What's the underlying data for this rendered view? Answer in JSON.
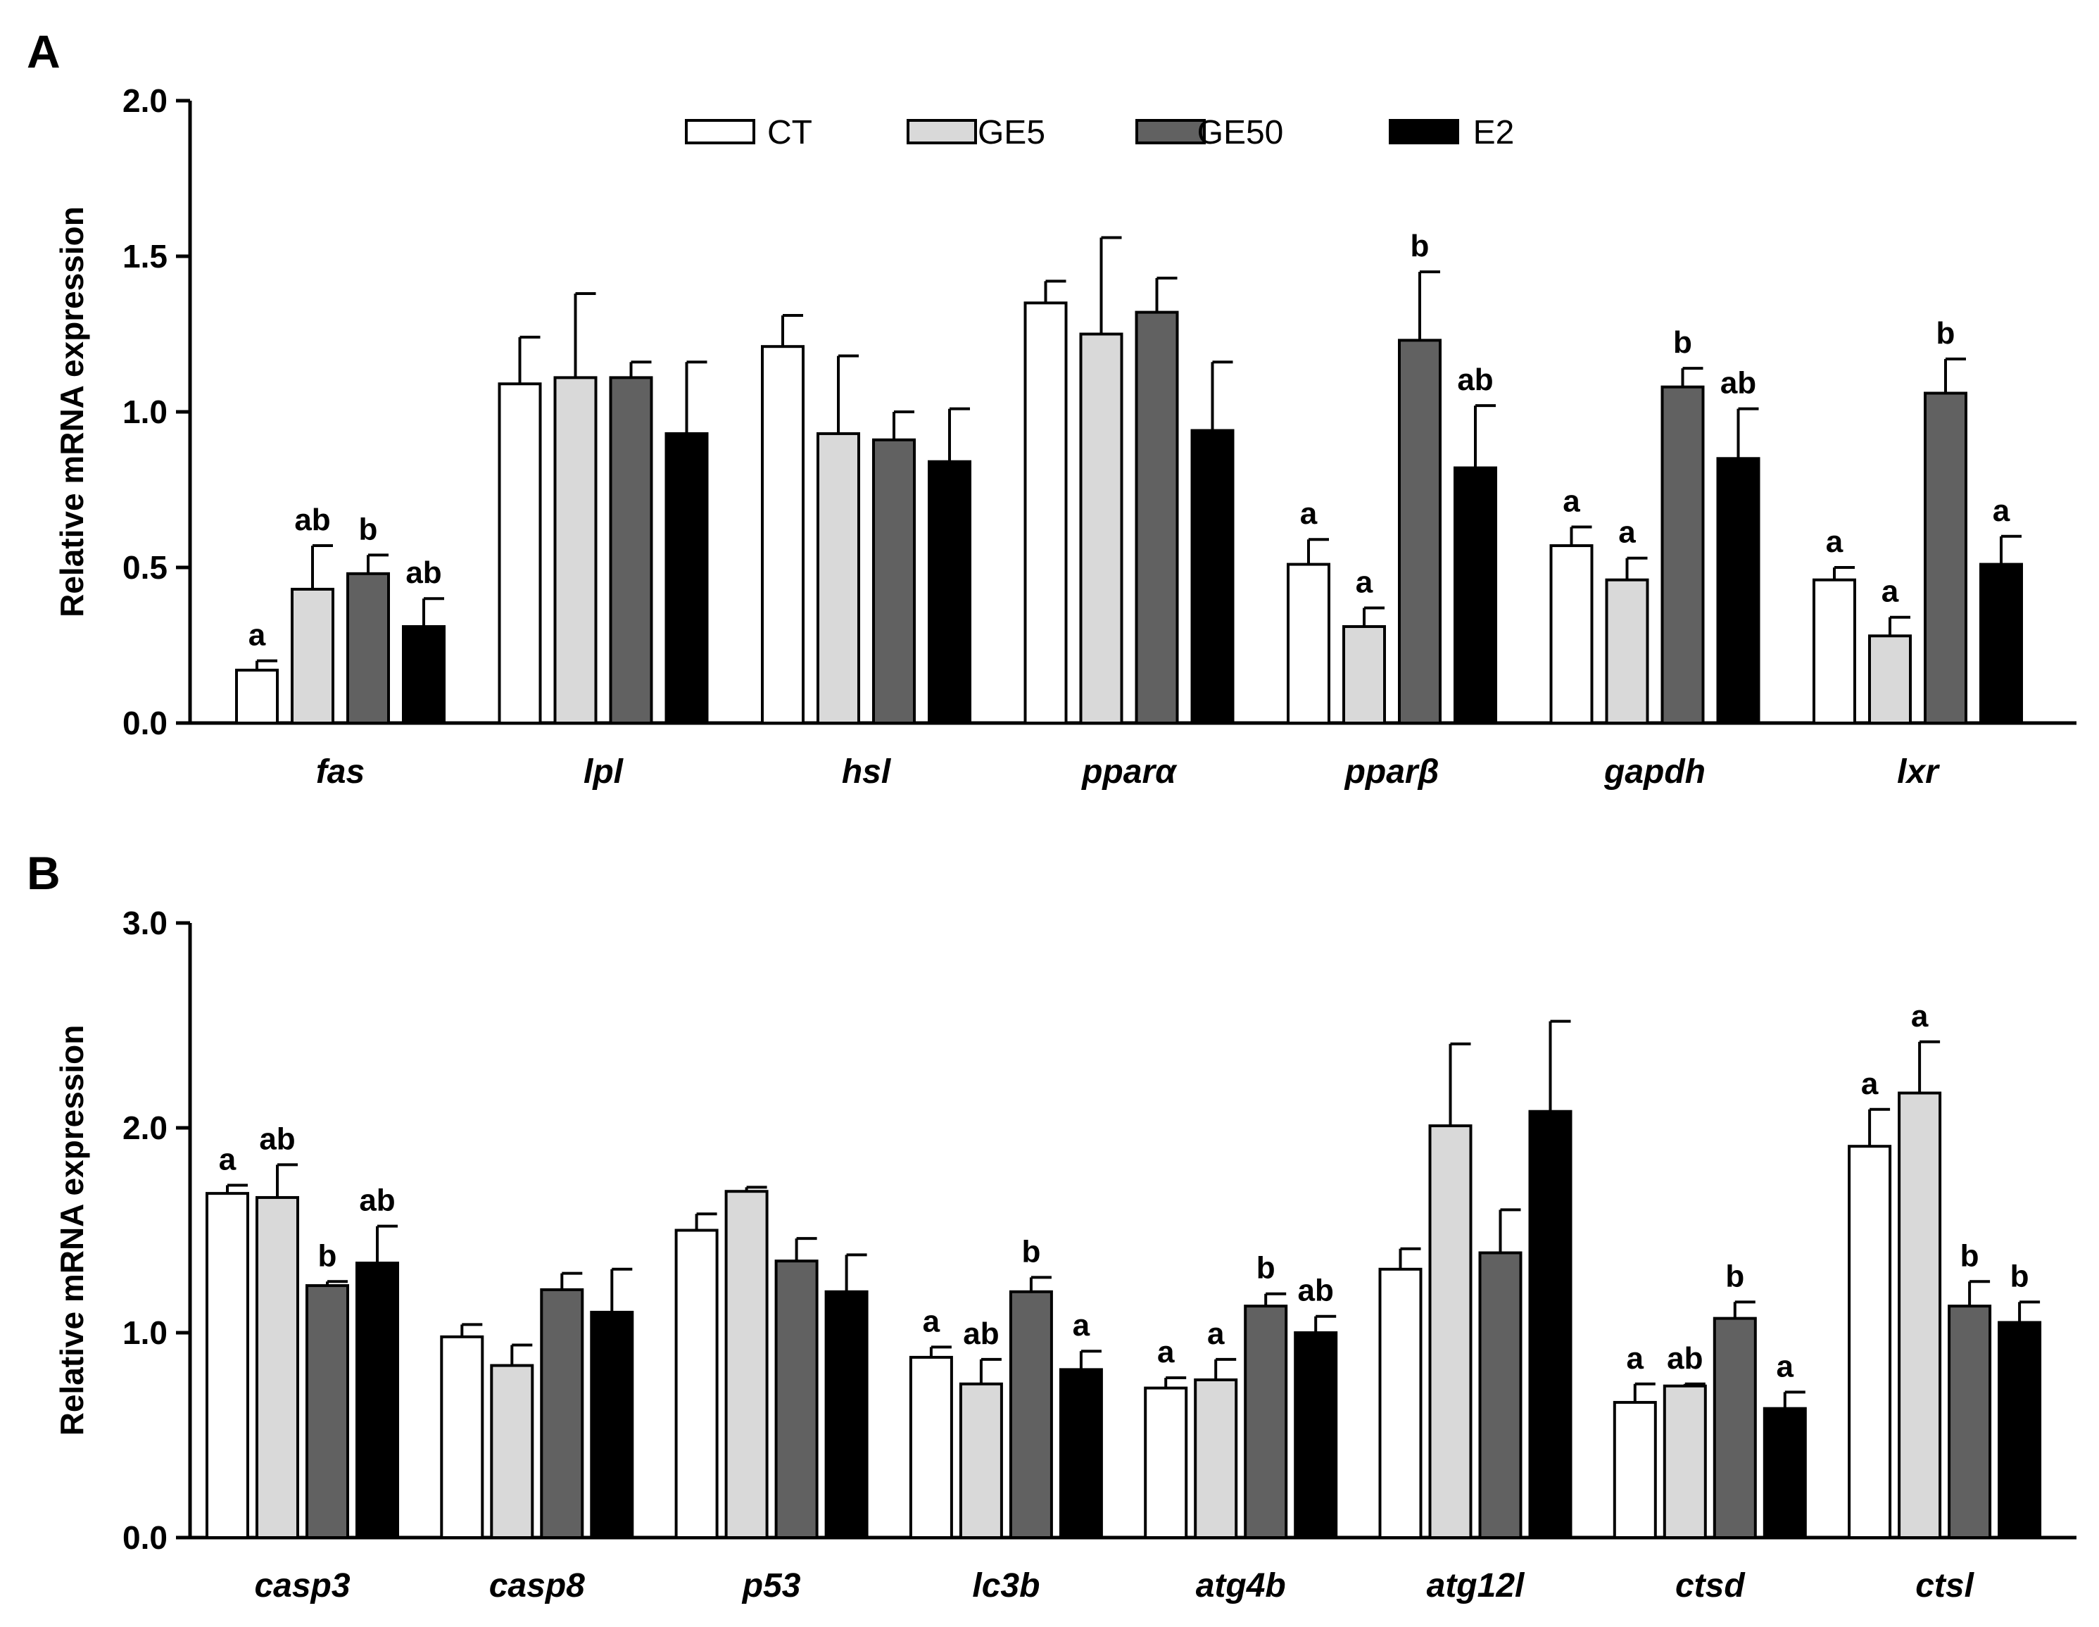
{
  "legend": [
    {
      "name": "CT",
      "color": "#ffffff"
    },
    {
      "name": "GE5",
      "color": "#d9d9d9"
    },
    {
      "name": "GE50",
      "color": "#616161"
    },
    {
      "name": "E2",
      "color": "#000000"
    }
  ],
  "chart_data": [
    {
      "panel": "A",
      "type": "bar",
      "ylabel": "Relative mRNA expression",
      "ylim": [
        0,
        2.0
      ],
      "yticks": [
        "0.0",
        "0.5",
        "1.0",
        "1.5",
        "2.0"
      ],
      "categories": [
        "fas",
        "lpl",
        "hsl",
        "pparα",
        "pparβ",
        "gapdh",
        "lxr"
      ],
      "series": [
        {
          "name": "CT",
          "values": [
            0.17,
            1.09,
            1.21,
            1.35,
            0.51,
            0.57,
            0.46
          ],
          "errors": [
            0.03,
            0.15,
            0.1,
            0.07,
            0.08,
            0.06,
            0.04
          ]
        },
        {
          "name": "GE5",
          "values": [
            0.43,
            1.11,
            0.93,
            1.25,
            0.31,
            0.46,
            0.28
          ],
          "errors": [
            0.14,
            0.27,
            0.25,
            0.31,
            0.06,
            0.07,
            0.06
          ]
        },
        {
          "name": "GE50",
          "values": [
            0.48,
            1.11,
            0.91,
            1.32,
            1.23,
            1.08,
            1.06
          ],
          "errors": [
            0.06,
            0.05,
            0.09,
            0.11,
            0.22,
            0.06,
            0.11
          ]
        },
        {
          "name": "E2",
          "values": [
            0.31,
            0.93,
            0.84,
            0.94,
            0.82,
            0.85,
            0.51
          ],
          "errors": [
            0.09,
            0.23,
            0.17,
            0.22,
            0.2,
            0.16,
            0.09
          ]
        }
      ],
      "significance": [
        [
          "a",
          "ab",
          "b",
          "ab"
        ],
        [
          "",
          "",
          "",
          ""
        ],
        [
          "",
          "",
          "",
          ""
        ],
        [
          "",
          "",
          "",
          ""
        ],
        [
          "a",
          "a",
          "b",
          "ab"
        ],
        [
          "a",
          "a",
          "b",
          "ab"
        ],
        [
          "a",
          "a",
          "b",
          "a"
        ]
      ]
    },
    {
      "panel": "B",
      "type": "bar",
      "ylabel": "Relative mRNA expression",
      "ylim": [
        0,
        3.0
      ],
      "yticks": [
        "0.0",
        "1.0",
        "2.0",
        "3.0"
      ],
      "categories": [
        "casp3",
        "casp8",
        "p53",
        "lc3b",
        "atg4b",
        "atg12l",
        "ctsd",
        "ctsl"
      ],
      "series": [
        {
          "name": "CT",
          "values": [
            1.68,
            0.98,
            1.5,
            0.88,
            0.73,
            1.31,
            0.66,
            1.91
          ],
          "errors": [
            0.04,
            0.06,
            0.08,
            0.05,
            0.05,
            0.1,
            0.09,
            0.18
          ]
        },
        {
          "name": "GE5",
          "values": [
            1.66,
            0.84,
            1.69,
            0.75,
            0.77,
            2.01,
            0.74,
            2.17
          ],
          "errors": [
            0.16,
            0.1,
            0.02,
            0.12,
            0.1,
            0.4,
            0.01,
            0.25
          ]
        },
        {
          "name": "GE50",
          "values": [
            1.23,
            1.21,
            1.35,
            1.2,
            1.13,
            1.39,
            1.07,
            1.13
          ],
          "errors": [
            0.02,
            0.08,
            0.11,
            0.07,
            0.06,
            0.21,
            0.08,
            0.12
          ]
        },
        {
          "name": "E2",
          "values": [
            1.34,
            1.1,
            1.2,
            0.82,
            1.0,
            2.08,
            0.63,
            1.05
          ],
          "errors": [
            0.18,
            0.21,
            0.18,
            0.09,
            0.08,
            0.44,
            0.08,
            0.1
          ]
        }
      ],
      "significance": [
        [
          "a",
          "ab",
          "b",
          "ab"
        ],
        [
          "",
          "",
          "",
          ""
        ],
        [
          "",
          "",
          "",
          ""
        ],
        [
          "a",
          "ab",
          "b",
          "a"
        ],
        [
          "a",
          "a",
          "b",
          "ab"
        ],
        [
          "",
          "",
          "",
          ""
        ],
        [
          "a",
          "ab",
          "b",
          "a"
        ],
        [
          "a",
          "a",
          "b",
          "b"
        ]
      ]
    }
  ]
}
